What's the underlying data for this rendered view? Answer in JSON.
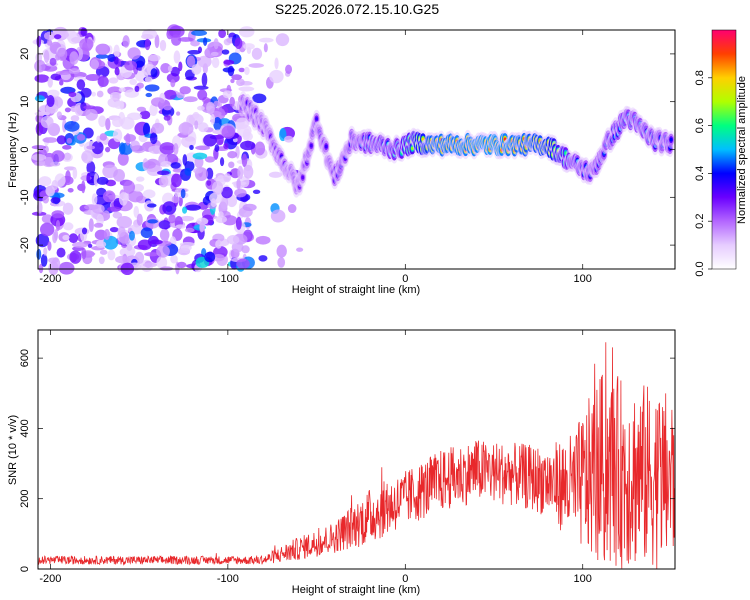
{
  "title": "S225.2026.072.15.10.G25",
  "chart_data": [
    {
      "type": "heatmap",
      "xlabel": "Height of straight line (km)",
      "ylabel": "Frequency (Hz)",
      "xlim": [
        -207,
        152
      ],
      "ylim": [
        -25,
        25
      ],
      "xticks": [
        -200,
        -100,
        0,
        100
      ],
      "yticks": [
        -20,
        -10,
        0,
        10,
        20
      ],
      "colorbar": {
        "label": "Normalized spectral amplitude",
        "range": [
          0,
          1
        ],
        "ticks": [
          0.0,
          0.2,
          0.4,
          0.6,
          0.8
        ],
        "colors": [
          "#ffffff",
          "#e6ccff",
          "#b366ff",
          "#6a00ff",
          "#0000ff",
          "#00bfff",
          "#00ff80",
          "#b0ff00",
          "#ffd000",
          "#ff4000",
          "#ff0070"
        ]
      },
      "ridge": [
        {
          "x": -92,
          "y": 10,
          "amp": 0.35
        },
        {
          "x": -80,
          "y": 5,
          "amp": 0.3
        },
        {
          "x": -70,
          "y": -2,
          "amp": 0.35
        },
        {
          "x": -60,
          "y": -8,
          "amp": 0.3
        },
        {
          "x": -50,
          "y": 6,
          "amp": 0.35
        },
        {
          "x": -40,
          "y": -6,
          "amp": 0.35
        },
        {
          "x": -30,
          "y": 2,
          "amp": 0.4
        },
        {
          "x": -15,
          "y": 1,
          "amp": 0.5
        },
        {
          "x": -5,
          "y": 0,
          "amp": 0.55
        },
        {
          "x": 5,
          "y": 1.5,
          "amp": 0.7
        },
        {
          "x": 15,
          "y": 1,
          "amp": 0.9
        },
        {
          "x": 50,
          "y": 1,
          "amp": 0.95
        },
        {
          "x": 80,
          "y": 1,
          "amp": 0.85
        },
        {
          "x": 95,
          "y": -3,
          "amp": 0.5
        },
        {
          "x": 105,
          "y": -5,
          "amp": 0.4
        },
        {
          "x": 115,
          "y": 2,
          "amp": 0.45
        },
        {
          "x": 125,
          "y": 7,
          "amp": 0.5
        },
        {
          "x": 140,
          "y": 2,
          "amp": 0.45
        },
        {
          "x": 150,
          "y": 1,
          "amp": 0.4
        }
      ],
      "noise_region_x": [
        -207,
        -88
      ]
    },
    {
      "type": "line",
      "xlabel": "Height of straight line (km)",
      "ylabel": "SNR (10 * v/v)",
      "xlim": [
        -207,
        152
      ],
      "ylim": [
        0,
        680
      ],
      "xticks": [
        -200,
        -100,
        0,
        100
      ],
      "yticks": [
        0,
        200,
        400,
        600
      ],
      "series": [
        {
          "name": "SNR",
          "color": "#e8282b",
          "envelope": [
            {
              "x": -207,
              "base": 25,
              "amp": 12
            },
            {
              "x": -80,
              "base": 25,
              "amp": 12
            },
            {
              "x": -65,
              "base": 50,
              "amp": 30
            },
            {
              "x": -40,
              "base": 90,
              "amp": 45
            },
            {
              "x": -20,
              "base": 150,
              "amp": 80
            },
            {
              "x": 0,
              "base": 200,
              "amp": 80
            },
            {
              "x": 20,
              "base": 250,
              "amp": 90
            },
            {
              "x": 40,
              "base": 280,
              "amp": 90
            },
            {
              "x": 60,
              "base": 270,
              "amp": 90
            },
            {
              "x": 80,
              "base": 250,
              "amp": 100
            },
            {
              "x": 95,
              "base": 230,
              "amp": 160
            },
            {
              "x": 110,
              "base": 280,
              "amp": 280
            },
            {
              "x": 130,
              "base": 270,
              "amp": 270
            },
            {
              "x": 152,
              "base": 250,
              "amp": 250
            }
          ]
        }
      ]
    }
  ]
}
